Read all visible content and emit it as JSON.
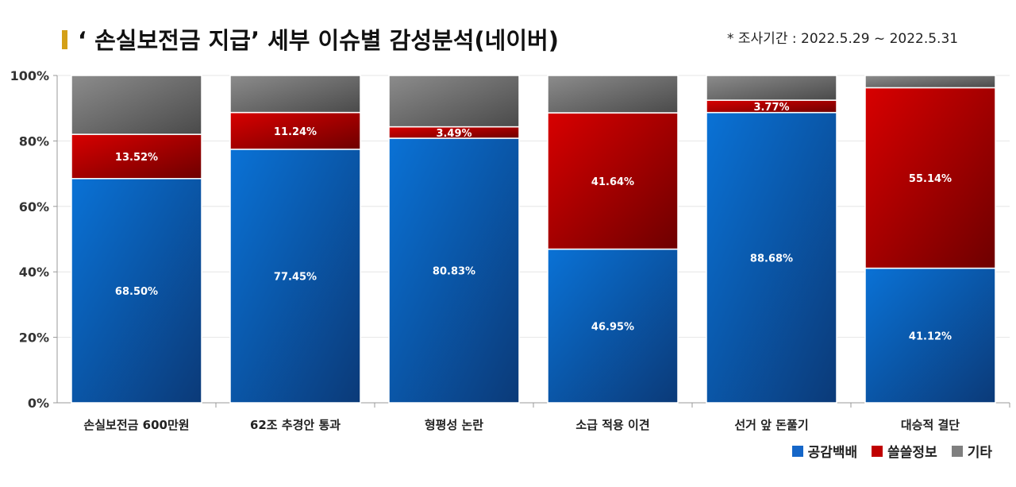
{
  "title": "‘ 손실보전금 지급’ 세부 이슈별 감성분석(네이버)",
  "subtitle": "* 조사기간 : 2022.5.29 ~ 2022.5.31",
  "legend": [
    {
      "name": "공감백배",
      "color": "#1566c8"
    },
    {
      "name": "쓸쓸정보",
      "color": "#c00000"
    },
    {
      "name": "기타",
      "color": "#7f7f7f"
    }
  ],
  "chart_data": {
    "type": "bar",
    "stacked": true,
    "title": "‘ 손실보전금 지급’ 세부 이슈별 감성분석(네이버)",
    "categories": [
      "손실보전금 600만원",
      "62조 추경안 통과",
      "형평성 논란",
      "소급 적용 이견",
      "선거 앞 돈풀기",
      "대승적 결단"
    ],
    "series": [
      {
        "name": "공감백배",
        "values": [
          68.5,
          77.45,
          80.83,
          46.95,
          88.68,
          41.12
        ],
        "labels": [
          "68.50%",
          "77.45%",
          "80.83%",
          "46.95%",
          "88.68%",
          "41.12%"
        ],
        "color": "#1566c8"
      },
      {
        "name": "쓸쓸정보",
        "values": [
          13.52,
          11.24,
          3.49,
          41.64,
          3.77,
          55.14
        ],
        "labels": [
          "13.52%",
          "11.24%",
          "3.49%",
          "41.64%",
          "3.77%",
          "55.14%"
        ],
        "color": "#c00000"
      },
      {
        "name": "기타",
        "values": [
          17.98,
          11.31,
          15.68,
          11.41,
          7.55,
          3.74
        ],
        "color": "#7f7f7f"
      }
    ],
    "yticks": [
      "0%",
      "20%",
      "40%",
      "60%",
      "80%",
      "100%"
    ],
    "ylim": [
      0,
      100
    ],
    "grid": true,
    "legend_position": "bottom-right"
  }
}
